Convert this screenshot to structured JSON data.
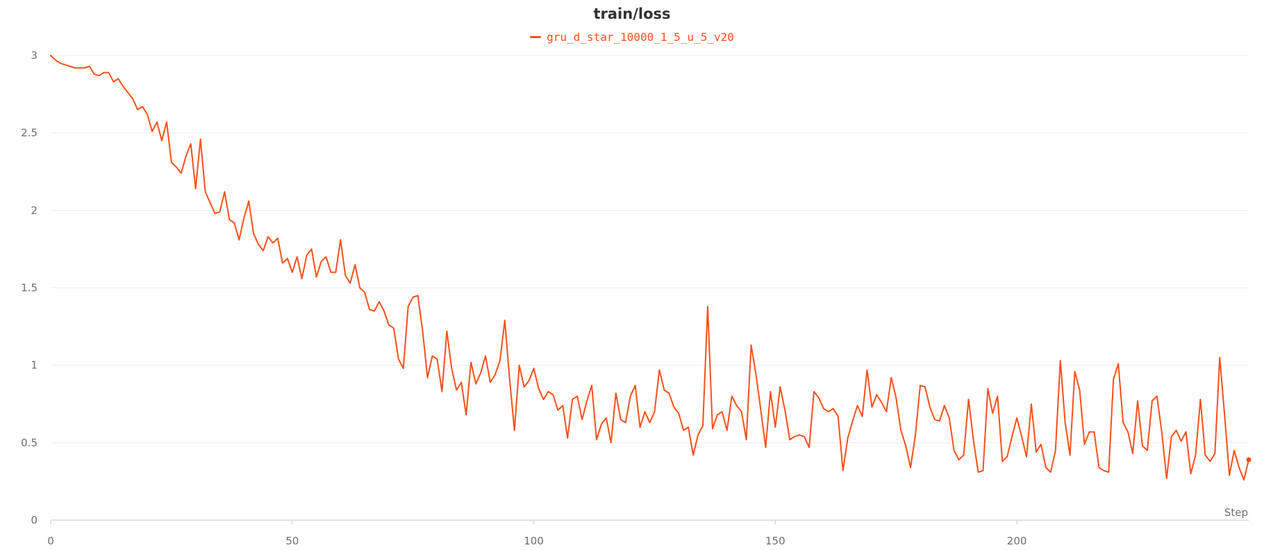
{
  "chart_data": {
    "type": "line",
    "title": "train/loss",
    "xlabel": "Step",
    "ylabel": "",
    "xlim": [
      0,
      248
    ],
    "ylim": [
      0,
      3.05
    ],
    "x_ticks": [
      0,
      50,
      100,
      150,
      200
    ],
    "y_ticks": [
      0,
      0.5,
      1,
      1.5,
      2,
      2.5,
      3
    ],
    "grid": true,
    "legend_position": "top-center",
    "series": [
      {
        "name": "gru_d_star_10000_1_5_u_5_v20",
        "color": "#fc4e17",
        "x_start": 0,
        "x_step": 1,
        "values": [
          3.0,
          2.97,
          2.95,
          2.94,
          2.93,
          2.92,
          2.92,
          2.92,
          2.93,
          2.88,
          2.87,
          2.89,
          2.89,
          2.83,
          2.85,
          2.8,
          2.76,
          2.72,
          2.65,
          2.67,
          2.62,
          2.51,
          2.57,
          2.45,
          2.57,
          2.31,
          2.28,
          2.24,
          2.35,
          2.43,
          2.14,
          2.46,
          2.12,
          2.05,
          1.98,
          1.99,
          2.12,
          1.94,
          1.92,
          1.81,
          1.95,
          2.06,
          1.85,
          1.78,
          1.74,
          1.83,
          1.79,
          1.82,
          1.66,
          1.69,
          1.6,
          1.7,
          1.56,
          1.71,
          1.75,
          1.57,
          1.67,
          1.7,
          1.6,
          1.6,
          1.81,
          1.58,
          1.53,
          1.65,
          1.5,
          1.47,
          1.36,
          1.35,
          1.41,
          1.35,
          1.26,
          1.24,
          1.04,
          0.98,
          1.38,
          1.44,
          1.45,
          1.22,
          0.92,
          1.06,
          1.04,
          0.83,
          1.22,
          0.98,
          0.84,
          0.89,
          0.68,
          1.02,
          0.88,
          0.95,
          1.06,
          0.89,
          0.94,
          1.03,
          1.29,
          0.91,
          0.58,
          1.0,
          0.86,
          0.9,
          0.98,
          0.85,
          0.78,
          0.83,
          0.81,
          0.71,
          0.74,
          0.53,
          0.78,
          0.8,
          0.65,
          0.77,
          0.87,
          0.52,
          0.62,
          0.66,
          0.5,
          0.82,
          0.65,
          0.63,
          0.8,
          0.87,
          0.6,
          0.7,
          0.63,
          0.7,
          0.97,
          0.84,
          0.82,
          0.73,
          0.69,
          0.58,
          0.6,
          0.42,
          0.55,
          0.61,
          1.38,
          0.59,
          0.68,
          0.7,
          0.58,
          0.8,
          0.74,
          0.7,
          0.52,
          1.13,
          0.94,
          0.71,
          0.47,
          0.83,
          0.6,
          0.86,
          0.71,
          0.52,
          0.54,
          0.55,
          0.54,
          0.47,
          0.83,
          0.79,
          0.72,
          0.7,
          0.72,
          0.67,
          0.32,
          0.53,
          0.64,
          0.74,
          0.67,
          0.97,
          0.73,
          0.81,
          0.76,
          0.7,
          0.92,
          0.79,
          0.58,
          0.48,
          0.34,
          0.55,
          0.87,
          0.86,
          0.73,
          0.65,
          0.64,
          0.74,
          0.66,
          0.45,
          0.39,
          0.42,
          0.78,
          0.52,
          0.31,
          0.32,
          0.85,
          0.69,
          0.8,
          0.38,
          0.41,
          0.54,
          0.66,
          0.54,
          0.41,
          0.75,
          0.44,
          0.49,
          0.34,
          0.31,
          0.45,
          1.03,
          0.63,
          0.42,
          0.96,
          0.84,
          0.49,
          0.57,
          0.57,
          0.34,
          0.32,
          0.31,
          0.91,
          1.01,
          0.63,
          0.57,
          0.43,
          0.77,
          0.48,
          0.45,
          0.77,
          0.8,
          0.57,
          0.27,
          0.54,
          0.58,
          0.51,
          0.57,
          0.3,
          0.42,
          0.78,
          0.42,
          0.38,
          0.43,
          1.05,
          0.68,
          0.29,
          0.45,
          0.34,
          0.26,
          0.39
        ]
      }
    ]
  }
}
